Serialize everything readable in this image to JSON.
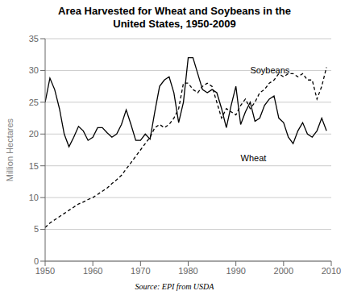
{
  "chart_data": {
    "type": "line",
    "title": "Area Harvested for Wheat and Soybeans in the\nUnited States, 1950-2009",
    "y_label": "Million Hectares",
    "source": "Source: EPI from USDA",
    "x": [
      1950,
      1951,
      1952,
      1953,
      1954,
      1955,
      1956,
      1957,
      1958,
      1959,
      1960,
      1961,
      1962,
      1963,
      1964,
      1965,
      1966,
      1967,
      1968,
      1969,
      1970,
      1971,
      1972,
      1973,
      1974,
      1975,
      1976,
      1977,
      1978,
      1979,
      1980,
      1981,
      1982,
      1983,
      1984,
      1985,
      1986,
      1987,
      1988,
      1989,
      1990,
      1991,
      1992,
      1993,
      1994,
      1995,
      1996,
      1997,
      1998,
      1999,
      2000,
      2001,
      2002,
      2003,
      2004,
      2005,
      2006,
      2007,
      2008,
      2009
    ],
    "series": [
      {
        "name": "Wheat",
        "color": "#000000",
        "line_style": "solid",
        "values": [
          25.0,
          28.8,
          27.0,
          24.0,
          20.0,
          18.0,
          19.5,
          21.2,
          20.5,
          19.0,
          19.5,
          21.0,
          21.0,
          20.2,
          19.5,
          20.0,
          21.5,
          23.8,
          21.5,
          19.0,
          19.0,
          20.0,
          19.2,
          23.5,
          27.5,
          28.5,
          29.0,
          26.5,
          21.8,
          25.0,
          32.0,
          32.0,
          29.5,
          27.0,
          26.5,
          27.0,
          26.5,
          24.0,
          21.0,
          24.5,
          27.5,
          21.5,
          23.5,
          25.0,
          22.0,
          22.5,
          24.5,
          25.5,
          26.0,
          22.5,
          21.8,
          19.5,
          18.5,
          20.5,
          21.8,
          20.0,
          19.5,
          20.5,
          22.5,
          20.5
        ]
      },
      {
        "name": "Soybeans",
        "color": "#000000",
        "line_style": "dashed",
        "values": [
          5.3,
          6.0,
          6.5,
          7.0,
          7.5,
          8.0,
          8.5,
          9.0,
          9.3,
          9.7,
          10.0,
          10.5,
          11.0,
          11.5,
          12.2,
          12.8,
          13.5,
          14.5,
          15.5,
          16.5,
          17.5,
          18.5,
          19.5,
          21.0,
          21.5,
          21.0,
          21.5,
          22.5,
          24.0,
          28.0,
          28.0,
          27.0,
          26.5,
          27.5,
          28.0,
          27.5,
          25.0,
          22.5,
          24.0,
          23.5,
          23.0,
          24.5,
          25.5,
          24.0,
          25.0,
          26.5,
          27.0,
          28.0,
          28.5,
          29.5,
          29.0,
          29.5,
          29.5,
          29.0,
          29.5,
          28.5,
          28.5,
          25.5,
          27.5,
          30.5
        ]
      }
    ],
    "annotations": [
      {
        "text": "Soybeans",
        "x": 1993,
        "y": 30.8
      },
      {
        "text": "Wheat",
        "x": 1991,
        "y": 17.0
      }
    ],
    "xlim": [
      1950,
      2010
    ],
    "xticks": [
      1950,
      1960,
      1970,
      1980,
      1990,
      2000,
      2010
    ],
    "ylim": [
      0,
      35
    ],
    "yticks": [
      0,
      5,
      10,
      15,
      20,
      25,
      30,
      35
    ],
    "grid": "y"
  }
}
